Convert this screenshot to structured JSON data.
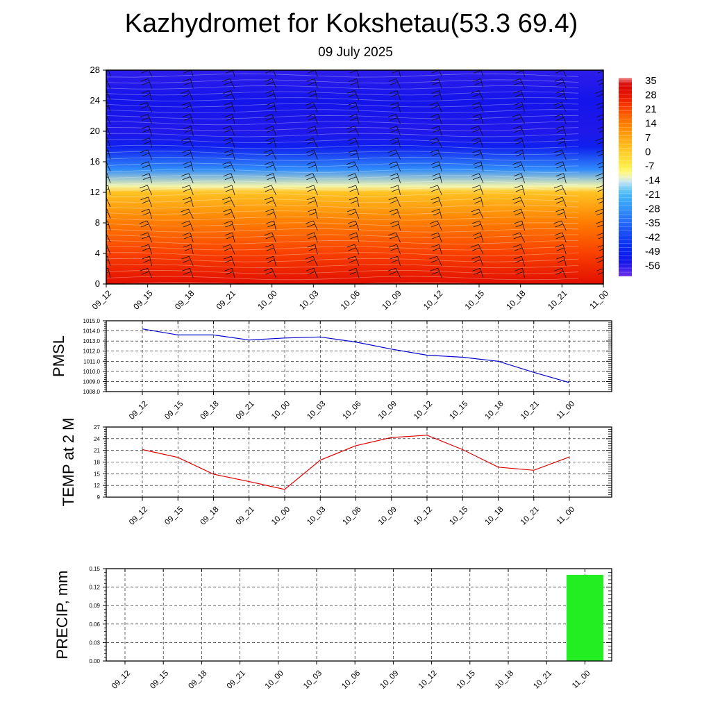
{
  "title": "Kazhydromet for Kokshetau(53.3 69.4)",
  "subtitle": "09 July 2025",
  "chart_data": [
    {
      "type": "heatmap",
      "title": "",
      "xlabel": "",
      "ylabel": "",
      "x_tick_labels": [
        "09_12",
        "09_15",
        "09_18",
        "09_21",
        "10_00",
        "10_03",
        "10_06",
        "10_09",
        "10_12",
        "10_15",
        "10_18",
        "10_21",
        "11_00"
      ],
      "ylim": [
        0,
        28
      ],
      "y_ticks": [
        0,
        4,
        8,
        12,
        16,
        20,
        24,
        28
      ],
      "colorbar_labels": [
        "35",
        "28",
        "21",
        "14",
        "7",
        "0",
        "-7",
        "-14",
        "-21",
        "-28",
        "-35",
        "-42",
        "-49",
        "-56"
      ],
      "colorbar_range": [
        -63,
        38
      ],
      "colors": {
        "hot": "#e00000",
        "orange": "#ff8a00",
        "yellow": "#ffe84a",
        "cyan": "#3fc0f0",
        "blue": "#1a3cf0",
        "deep_blue": "#0016e8"
      },
      "temperature_profile_by_height": [
        {
          "y": 0,
          "value": 31
        },
        {
          "y": 4,
          "value": 23
        },
        {
          "y": 8,
          "value": 15
        },
        {
          "y": 12,
          "value": 2
        },
        {
          "y": 12.8,
          "value": -12
        },
        {
          "y": 15,
          "value": -30
        },
        {
          "y": 18,
          "value": -52
        },
        {
          "y": 20,
          "value": -57
        },
        {
          "y": 24,
          "value": -56
        },
        {
          "y": 28,
          "value": -58
        }
      ],
      "wind_barbs": true
    },
    {
      "type": "line",
      "ylabel": "PMSL",
      "categories": [
        "09_12",
        "09_15",
        "09_18",
        "09_21",
        "10_00",
        "10_03",
        "10_06",
        "10_09",
        "10_12",
        "10_15",
        "10_18",
        "10_21",
        "11_00"
      ],
      "series": [
        {
          "values": [
            1014.2,
            1013.6,
            1013.6,
            1013.1,
            1013.3,
            1013.4,
            1012.9,
            1012.2,
            1011.6,
            1011.4,
            1011.0,
            1009.9,
            1008.9
          ],
          "color": "#0000cc"
        }
      ],
      "ylim": [
        1008,
        1015
      ],
      "y_tick_labels": [
        "1015.0",
        "1014.0",
        "1013.0",
        "1012.0",
        "1011.0",
        "1010.0",
        "1009.0",
        "1008.0"
      ],
      "grid": true
    },
    {
      "type": "line",
      "ylabel": "TEMP at 2 M",
      "categories": [
        "09_12",
        "09_15",
        "09_18",
        "09_21",
        "10_00",
        "10_03",
        "10_06",
        "10_09",
        "10_12",
        "10_15",
        "10_18",
        "10_21",
        "11_00"
      ],
      "series": [
        {
          "values": [
            21.2,
            19.2,
            14.9,
            13.0,
            11.0,
            18.5,
            22.2,
            24.3,
            24.9,
            21.2,
            16.7,
            15.9,
            19.3
          ],
          "color": "#dd0000"
        }
      ],
      "ylim": [
        9,
        27
      ],
      "y_tick_labels": [
        "27",
        "24",
        "21",
        "18",
        "15",
        "12",
        "9"
      ],
      "grid": true
    },
    {
      "type": "bar",
      "ylabel": "PRECIP, mm",
      "categories": [
        "09_12",
        "09_15",
        "09_18",
        "09_21",
        "10_00",
        "10_03",
        "10_06",
        "10_09",
        "10_12",
        "10_15",
        "10_18",
        "10_21",
        "11_00"
      ],
      "values": [
        0,
        0,
        0,
        0,
        0,
        0,
        0,
        0,
        0,
        0,
        0,
        0,
        0.14
      ],
      "ylim": [
        0,
        0.15
      ],
      "y_tick_labels": [
        "0.15",
        "0.12",
        "0.09",
        "0.06",
        "0.03",
        "0.00"
      ],
      "bar_color": "#22ee22",
      "grid": true
    }
  ]
}
